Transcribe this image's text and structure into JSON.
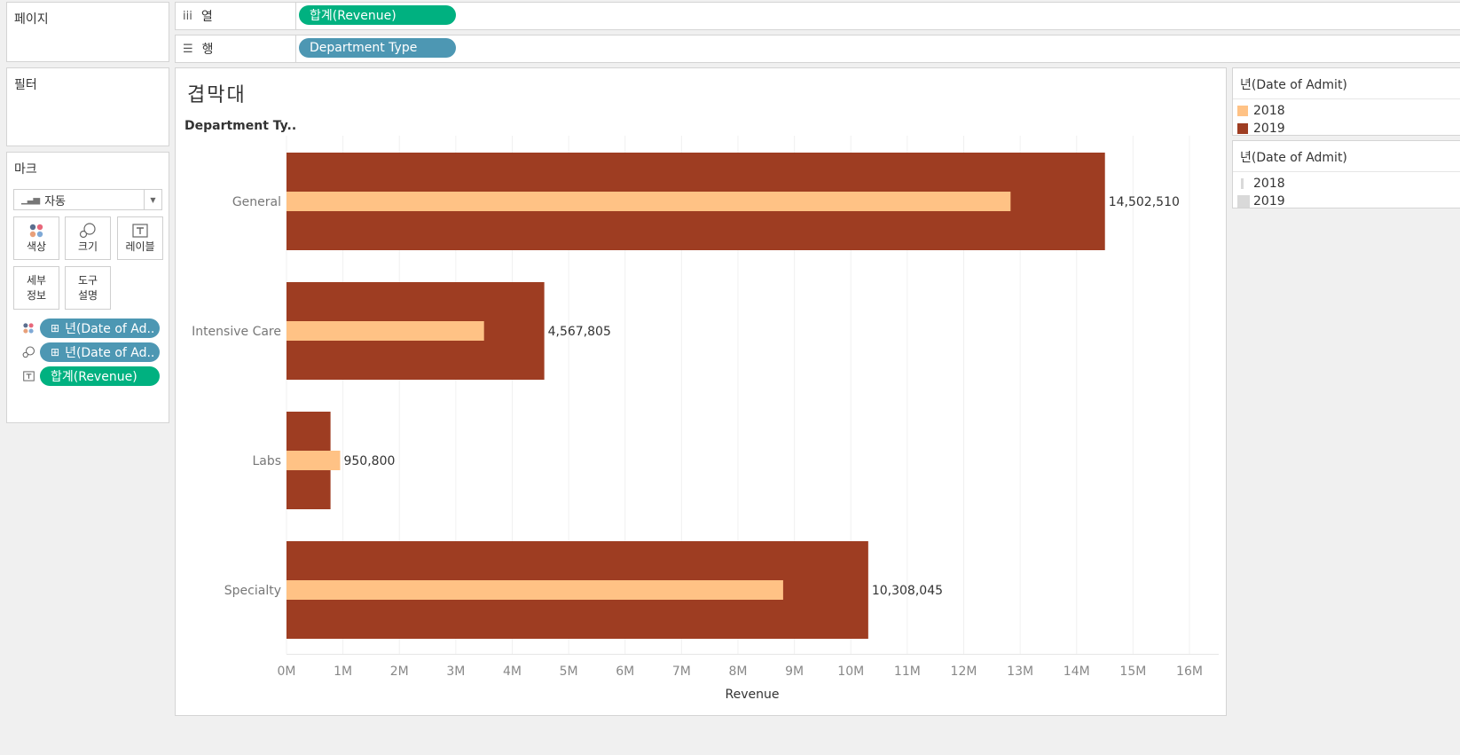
{
  "shelves": {
    "pages_title": "페이지",
    "filters_title": "필터",
    "columns": {
      "label": "열",
      "icon": "columns-icon",
      "pill": "합계(Revenue)"
    },
    "rows": {
      "label": "행",
      "icon": "rows-icon",
      "pill": "Department Type"
    }
  },
  "marks": {
    "title": "마크",
    "type_label": "자동",
    "buttons": {
      "color": "색상",
      "size": "크기",
      "label": "레이블",
      "detail_line1": "세부",
      "detail_line2": "정보",
      "tooltip_line1": "도구",
      "tooltip_line2": "설명"
    },
    "fields": [
      {
        "icon": "color-dots-icon",
        "label": "년(Date of Ad..",
        "prefix": "⊞"
      },
      {
        "icon": "size-icon",
        "label": "년(Date of Ad..",
        "prefix": "⊞"
      },
      {
        "icon": "label-icon",
        "label": "합계(Revenue)",
        "prefix": ""
      }
    ]
  },
  "sheet": {
    "title": "겹막대",
    "row_header": "Department Ty.."
  },
  "legends": {
    "color": {
      "title": "년(Date of Admit)",
      "items": [
        {
          "label": "2018",
          "color": "#ffc285"
        },
        {
          "label": "2019",
          "color": "#9e3d22"
        }
      ]
    },
    "size": {
      "title": "년(Date of Admit)",
      "items": [
        {
          "label": "2018",
          "color": "#d9d9d9"
        },
        {
          "label": "2019",
          "color": "#d9d9d9"
        }
      ]
    }
  },
  "chart_data": {
    "type": "bar",
    "orientation": "horizontal",
    "categories": [
      "General",
      "Intensive Care",
      "Labs",
      "Specialty"
    ],
    "series": [
      {
        "name": "2019",
        "color": "#9e3d22",
        "values": [
          14502510,
          4567805,
          780000,
          10308045
        ]
      },
      {
        "name": "2018",
        "color": "#ffc285",
        "values": [
          12830000,
          3500000,
          950800,
          8800000
        ]
      }
    ],
    "data_labels": [
      "14,502,510",
      "4,567,805",
      "950,800",
      "10,308,045"
    ],
    "xlabel": "Revenue",
    "xlim": [
      0,
      16500000
    ],
    "ticks": [
      "0M",
      "1M",
      "2M",
      "3M",
      "4M",
      "5M",
      "6M",
      "7M",
      "8M",
      "9M",
      "10M",
      "11M",
      "12M",
      "13M",
      "14M",
      "15M",
      "16M"
    ],
    "tick_values": [
      0,
      1000000,
      2000000,
      3000000,
      4000000,
      5000000,
      6000000,
      7000000,
      8000000,
      9000000,
      10000000,
      11000000,
      12000000,
      13000000,
      14000000,
      15000000,
      16000000
    ],
    "grid": true
  }
}
